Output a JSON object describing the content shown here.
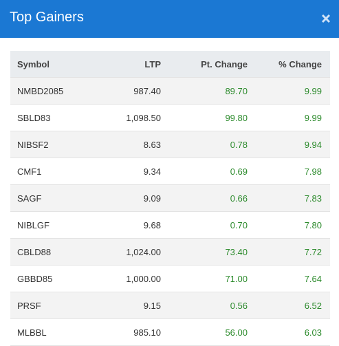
{
  "header": {
    "title": "Top Gainers"
  },
  "table": {
    "columns": [
      "Symbol",
      "LTP",
      "Pt. Change",
      "% Change"
    ],
    "rows": [
      [
        "NMBD2085",
        "987.40",
        "89.70",
        "9.99"
      ],
      [
        "SBLD83",
        "1,098.50",
        "99.80",
        "9.99"
      ],
      [
        "NIBSF2",
        "8.63",
        "0.78",
        "9.94"
      ],
      [
        "CMF1",
        "9.34",
        "0.69",
        "7.98"
      ],
      [
        "SAGF",
        "9.09",
        "0.66",
        "7.83"
      ],
      [
        "NIBLGF",
        "9.68",
        "0.70",
        "7.80"
      ],
      [
        "CBLD88",
        "1,024.00",
        "73.40",
        "7.72"
      ],
      [
        "GBBD85",
        "1,000.00",
        "71.00",
        "7.64"
      ],
      [
        "PRSF",
        "9.15",
        "0.56",
        "6.52"
      ],
      [
        "MLBBL",
        "985.10",
        "56.00",
        "6.03"
      ]
    ]
  }
}
